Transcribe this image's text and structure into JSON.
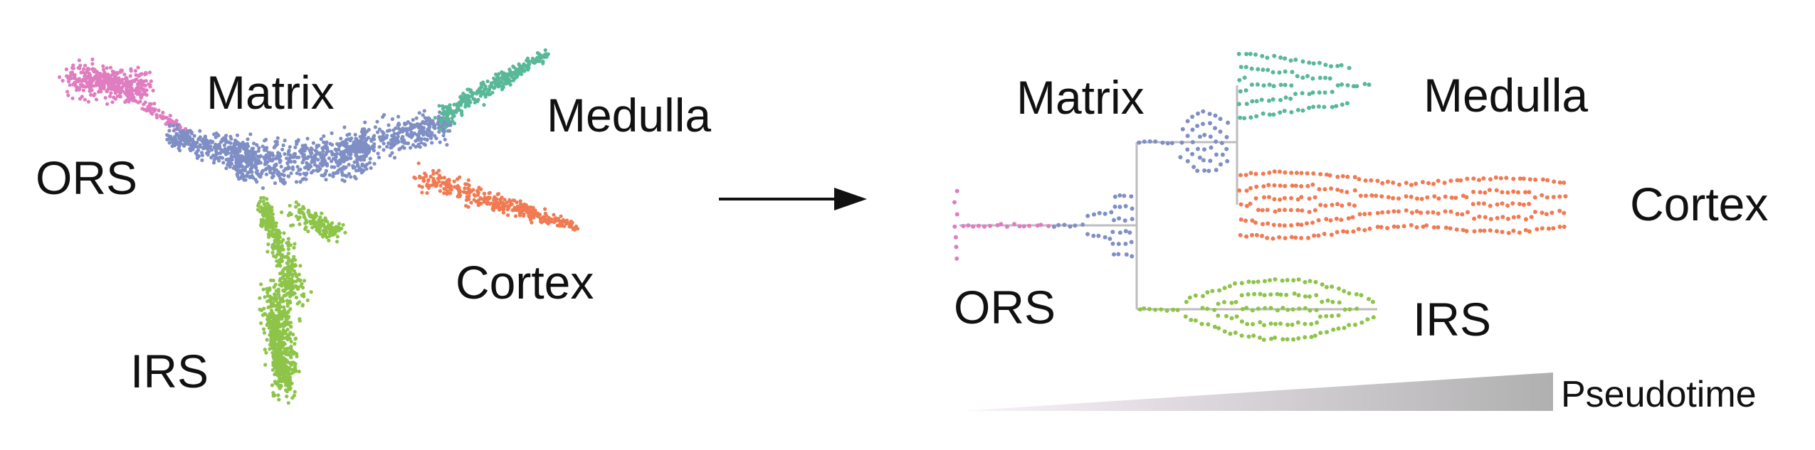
{
  "left_panel": {
    "labels": [
      "Matrix",
      "Medulla",
      "ORS",
      "Cortex",
      "IRS"
    ]
  },
  "right_panel": {
    "labels": [
      "Matrix",
      "Medulla",
      "Cortex",
      "ORS",
      "IRS"
    ],
    "pseudotime_label": "Pseudotime"
  },
  "colors": {
    "ORS": "#e07cc0",
    "Matrix": "#7f8fc5",
    "Medulla": "#58b898",
    "Cortex": "#f17a52",
    "IRS": "#8dc449",
    "branch_line": "#bdbdbd",
    "arrow": "#111111",
    "pseudotime_gradient_start": "#fbf2fb",
    "pseudotime_gradient_end": "#b0b0b0"
  },
  "icons": {
    "arrow": "right-arrow-icon",
    "pseudotime_wedge": "gradient-wedge-icon"
  }
}
